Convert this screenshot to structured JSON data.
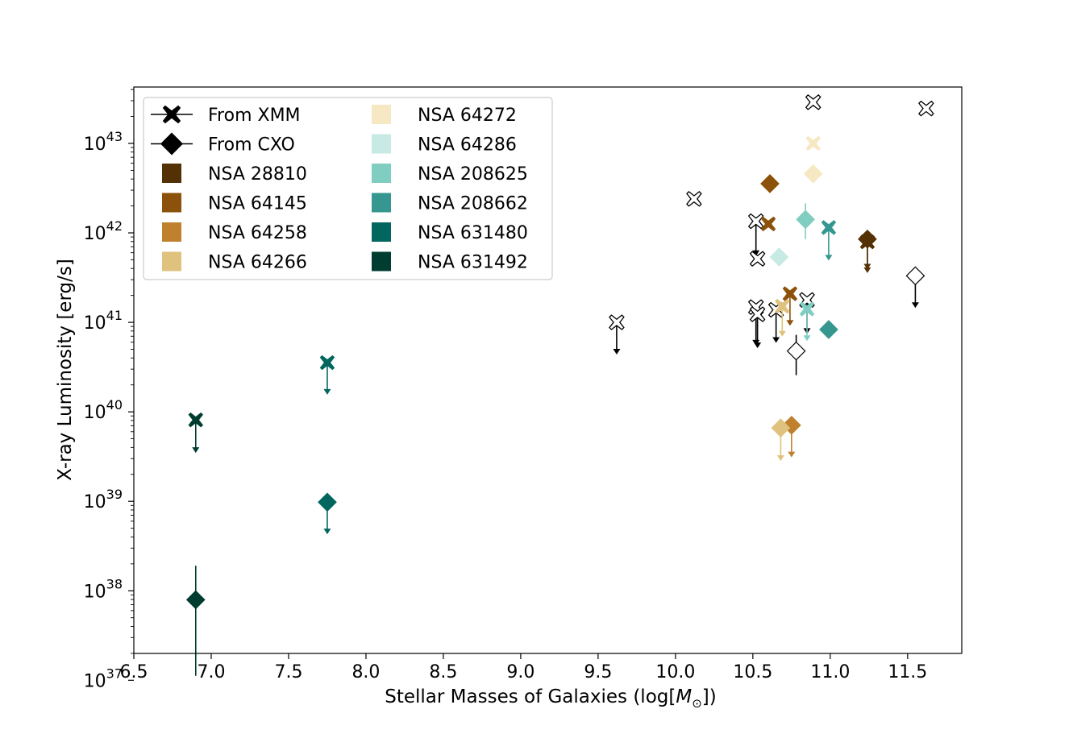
{
  "chart_data": {
    "type": "scatter",
    "title": "",
    "xlabel": "Stellar Masses of Galaxies (log[",
    "xlabel_symbol": "M",
    "xlabel_subscript": "⊙",
    "xlabel_close": "])",
    "ylabel": "X-ray Luminosity [erg/s]",
    "xlim": [
      6.5,
      11.85
    ],
    "ylim_log10": [
      37.3,
      43.63
    ],
    "yscale": "log",
    "x_ticks": [
      "6.5",
      "7.0",
      "7.5",
      "8.0",
      "8.5",
      "9.0",
      "9.5",
      "10.0",
      "10.5",
      "11.0",
      "11.5"
    ],
    "y_ticks": [
      {
        "base": "10",
        "exp": "37"
      },
      {
        "base": "10",
        "exp": "38"
      },
      {
        "base": "10",
        "exp": "39"
      },
      {
        "base": "10",
        "exp": "40"
      },
      {
        "base": "10",
        "exp": "41"
      },
      {
        "base": "10",
        "exp": "42"
      },
      {
        "base": "10",
        "exp": "43"
      }
    ],
    "legend": {
      "position": "upper-left",
      "columns": 2,
      "markers": [
        {
          "label": "From XMM",
          "marker": "x"
        },
        {
          "label": "From CXO",
          "marker": "diamond"
        }
      ],
      "galaxies": [
        {
          "label": "NSA 28810",
          "color": "#543005"
        },
        {
          "label": "NSA 64145",
          "color": "#8c510a"
        },
        {
          "label": "NSA 64258",
          "color": "#bf812d"
        },
        {
          "label": "NSA 64266",
          "color": "#dfc27d"
        },
        {
          "label": "NSA 64272",
          "color": "#f6e8c3"
        },
        {
          "label": "NSA 64286",
          "color": "#c7eae5"
        },
        {
          "label": "NSA 208625",
          "color": "#80cdc1"
        },
        {
          "label": "NSA 208662",
          "color": "#35978f"
        },
        {
          "label": "NSA 631480",
          "color": "#01665e"
        },
        {
          "label": "NSA 631492",
          "color": "#003c30"
        }
      ]
    },
    "points": [
      {
        "x": 10.89,
        "logL": 43.46,
        "marker": "x",
        "color": "none"
      },
      {
        "x": 11.62,
        "logL": 43.39,
        "marker": "x",
        "color": "none"
      },
      {
        "x": 10.12,
        "logL": 42.38,
        "marker": "x",
        "color": "none"
      },
      {
        "x": 10.52,
        "logL": 42.13,
        "marker": "x",
        "color": "none",
        "upper_limit": true,
        "arrow_to": 41.75
      },
      {
        "x": 10.53,
        "logL": 41.71,
        "marker": "x",
        "color": "none"
      },
      {
        "x": 9.62,
        "logL": 41.0,
        "marker": "x",
        "color": "none",
        "upper_limit": true,
        "arrow_to": 40.65
      },
      {
        "x": 10.52,
        "logL": 41.17,
        "marker": "x",
        "color": "none",
        "upper_limit": true,
        "arrow_to": 40.75
      },
      {
        "x": 10.53,
        "logL": 41.09,
        "marker": "x",
        "color": "none",
        "upper_limit": true,
        "arrow_to": 40.72
      },
      {
        "x": 10.65,
        "logL": 41.14,
        "marker": "x",
        "color": "none",
        "upper_limit": true,
        "arrow_to": 40.78
      },
      {
        "x": 10.85,
        "logL": 41.25,
        "marker": "x",
        "color": "none",
        "upper_limit": true,
        "arrow_to": 40.88
      },
      {
        "x": 10.78,
        "logL": 40.68,
        "marker": "diamond",
        "color": "none",
        "err_low": 40.41,
        "err_high": 40.86
      },
      {
        "x": 11.55,
        "logL": 41.52,
        "marker": "diamond",
        "color": "none",
        "upper_limit": true,
        "arrow_to": 41.17
      },
      {
        "x": 11.24,
        "logL": 41.9,
        "marker": "x",
        "color": "#543005",
        "upper_limit": true,
        "arrow_to": 41.56
      },
      {
        "x": 11.24,
        "logL": 41.93,
        "marker": "diamond",
        "color": "#543005",
        "upper_limit": true,
        "arrow_to": 41.6
      },
      {
        "x": 10.6,
        "logL": 42.1,
        "marker": "x",
        "color": "#8c510a"
      },
      {
        "x": 10.61,
        "logL": 42.55,
        "marker": "diamond",
        "color": "#8c510a"
      },
      {
        "x": 10.74,
        "logL": 41.32,
        "marker": "x",
        "color": "#8c510a",
        "upper_limit": true,
        "arrow_to": 40.97
      },
      {
        "x": 10.75,
        "logL": 39.85,
        "marker": "diamond",
        "color": "#bf812d",
        "upper_limit": true,
        "arrow_to": 39.5
      },
      {
        "x": 10.69,
        "logL": 41.18,
        "marker": "x",
        "color": "#dfc27d",
        "upper_limit": true,
        "arrow_to": 40.85
      },
      {
        "x": 10.68,
        "logL": 39.82,
        "marker": "diamond",
        "color": "#dfc27d",
        "upper_limit": true,
        "arrow_to": 39.46
      },
      {
        "x": 10.89,
        "logL": 43.0,
        "marker": "x",
        "color": "#f6e8c3"
      },
      {
        "x": 10.89,
        "logL": 42.66,
        "marker": "diamond",
        "color": "#f6e8c3"
      },
      {
        "x": 10.67,
        "logL": 41.73,
        "marker": "diamond",
        "color": "#c7eae5"
      },
      {
        "x": 10.84,
        "logL": 42.15,
        "marker": "diamond",
        "color": "#80cdc1",
        "err_low": 41.93,
        "err_high": 42.33
      },
      {
        "x": 10.85,
        "logL": 41.15,
        "marker": "x",
        "color": "#80cdc1",
        "upper_limit": true,
        "arrow_to": 40.8
      },
      {
        "x": 10.99,
        "logL": 42.06,
        "marker": "x",
        "color": "#35978f",
        "upper_limit": true,
        "arrow_to": 41.7
      },
      {
        "x": 10.99,
        "logL": 40.92,
        "marker": "diamond",
        "color": "#35978f"
      },
      {
        "x": 7.75,
        "logL": 40.55,
        "marker": "x",
        "color": "#01665e",
        "upper_limit": true,
        "arrow_to": 40.2
      },
      {
        "x": 7.75,
        "logL": 38.99,
        "marker": "diamond",
        "color": "#01665e",
        "upper_limit": true,
        "arrow_to": 38.64
      },
      {
        "x": 6.9,
        "logL": 39.91,
        "marker": "x",
        "color": "#003c30",
        "upper_limit": true,
        "arrow_to": 39.55
      },
      {
        "x": 6.9,
        "logL": 37.9,
        "marker": "diamond",
        "color": "#003c30",
        "err_low": 37.05,
        "err_high": 38.28
      }
    ]
  }
}
